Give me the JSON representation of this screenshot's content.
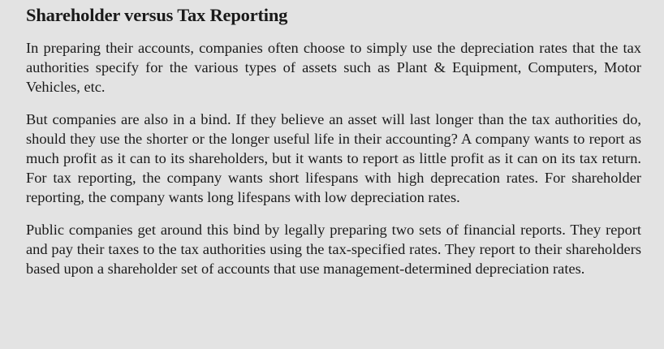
{
  "document": {
    "title": "Shareholder versus Tax Reporting",
    "paragraphs": [
      "In preparing their accounts, companies often choose to simply use the depreciation rates that the tax authorities specify for the various types of assets such as Plant & Equipment, Computers, Motor Vehicles, etc.",
      "But companies are also in a bind. If they believe an asset will last longer than the tax authorities do, should they use the shorter or the longer useful life in their accounting? A company wants to report as much profit as it can to its shareholders, but it wants to report as little profit as it can on its tax return. For tax reporting, the company wants short lifespans with high deprecation rates. For shareholder reporting, the company wants long lifespans with low depreciation rates.",
      "Public companies get around this bind by legally preparing two sets of financial reports. They report and pay their taxes to the tax authorities using the tax-specified rates. They report to their shareholders based upon a shareholder set of accounts that use management-determined depreciation rates."
    ]
  },
  "colors": {
    "background": "#e3e3e3",
    "text": "#1a1a1a"
  }
}
